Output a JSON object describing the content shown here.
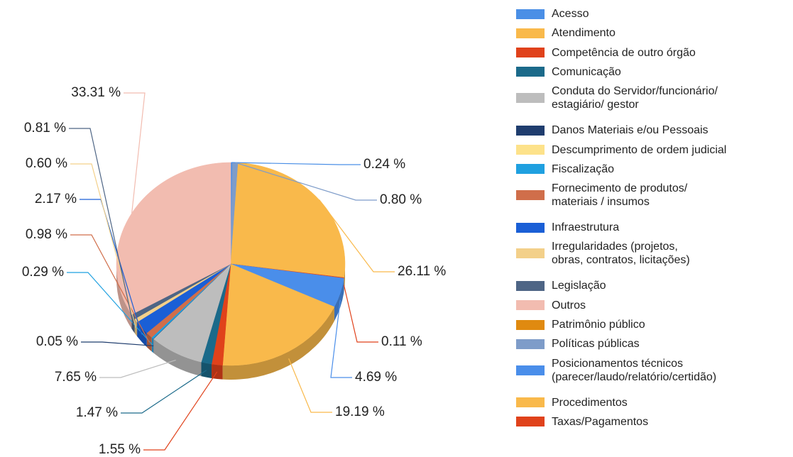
{
  "chart_data": {
    "type": "pie",
    "categories": [
      "Acesso",
      "Atendimento",
      "Competência de outro órgão",
      "Comunicação",
      "Conduta do Servidor/funcionário/\nestagiário/ gestor",
      "Danos Materiais e/ou Pessoais",
      "Descumprimento de ordem judicial",
      "Fiscalização",
      "Fornecimento de produtos/\nmateriais / insumos",
      "Infraestrutura",
      "Irregularidades (projetos,\nobras, contratos, licitações)",
      "Legislação",
      "Outros",
      "Patrimônio público",
      "Políticas públicas",
      "Posicionamentos técnicos\n(parecer/laudo/relatório/certidão)",
      "Procedimentos",
      "Taxas/Pagamentos"
    ],
    "values": [
      0.24,
      26.11,
      0.11,
      1.47,
      7.65,
      0.05,
      null,
      0.29,
      0.98,
      2.17,
      0.6,
      0.81,
      33.31,
      null,
      0.8,
      4.69,
      19.19,
      1.55
    ],
    "value_labels": [
      "0.24 %",
      "26.11 %",
      "0.11 %",
      "1.47 %",
      "7.65 %",
      "0.05 %",
      null,
      "0.29 %",
      "0.98 %",
      "2.17 %",
      "0.60 %",
      "0.81 %",
      "33.31 %",
      null,
      "0.80 %",
      "4.69 %",
      "19.19 %",
      "1.55 %"
    ],
    "colors": [
      "#4a8fe6",
      "#f9b94b",
      "#e0421b",
      "#1b6a8a",
      "#bdbdbd",
      "#1f3d6e",
      "#fde28a",
      "#1fa0e0",
      "#d06e4a",
      "#1a5fd6",
      "#f3d08a",
      "#4e6585",
      "#f2bcb0",
      "#e08a10",
      "#7e9cc9",
      "#4a8eea",
      "#f9b94b",
      "#e0421b"
    ],
    "legend": "right"
  }
}
